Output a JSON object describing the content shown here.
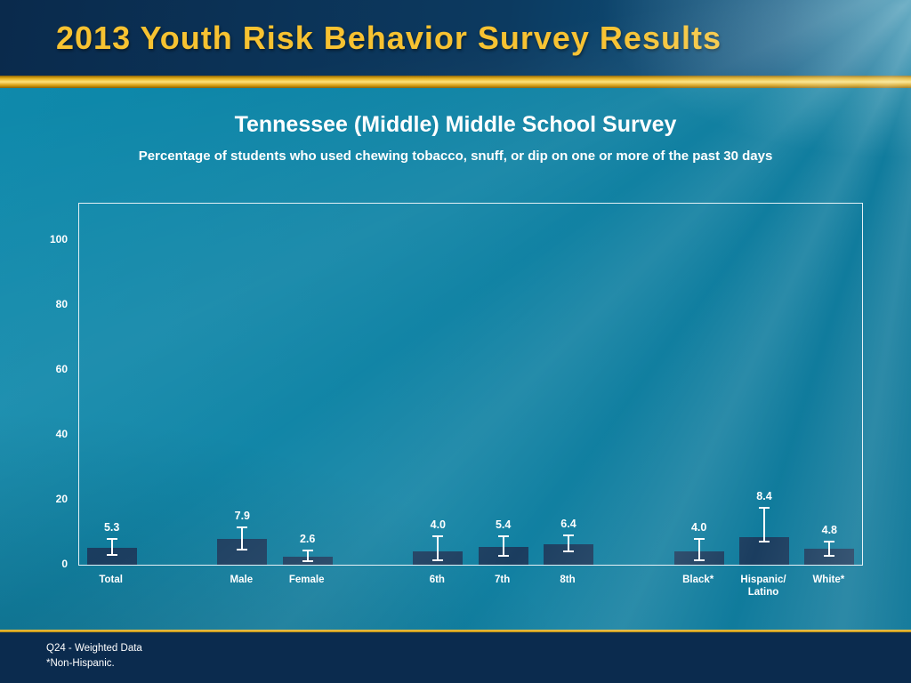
{
  "header": {
    "title": "2013 Youth Risk Behavior Survey Results"
  },
  "colors": {
    "header_bg": "#0b2f55",
    "accent_gold": "#f7c231",
    "background_teal": "#0d82a4",
    "bar": "#16395c",
    "error_bar": "#ffffff",
    "text": "#ffffff",
    "footer_bg": "#0b2b4e"
  },
  "chart_data": {
    "type": "bar",
    "title": "Tennessee (Middle) Middle School Survey",
    "subtitle": "Percentage of students who used chewing tobacco, snuff, or dip on one or more of the past 30 days",
    "xlabel": "",
    "ylabel": "",
    "ylim": [
      0,
      100
    ],
    "yticks": [
      0,
      20,
      40,
      60,
      80,
      100
    ],
    "grid": false,
    "legend": false,
    "bar_color": "#16395c",
    "error_color": "#ffffff",
    "groups": [
      [
        {
          "label": "Total",
          "value": 5.3,
          "err_up": 3.0,
          "err_down": 2.5
        }
      ],
      [
        {
          "label": "Male",
          "value": 7.9,
          "err_up": 4.0,
          "err_down": 3.5
        },
        {
          "label": "Female",
          "value": 2.6,
          "err_up": 2.0,
          "err_down": 1.7
        }
      ],
      [
        {
          "label": "6th",
          "value": 4.0,
          "err_up": 5.0,
          "err_down": 2.8
        },
        {
          "label": "7th",
          "value": 5.4,
          "err_up": 3.6,
          "err_down": 3.0
        },
        {
          "label": "8th",
          "value": 6.4,
          "err_up": 3.0,
          "err_down": 2.7
        }
      ],
      [
        {
          "label": "Black*",
          "value": 4.0,
          "err_up": 4.2,
          "err_down": 2.8
        },
        {
          "label": "Hispanic/\nLatino",
          "value": 8.4,
          "err_up": 9.5,
          "err_down": 1.5
        },
        {
          "label": "White*",
          "value": 4.8,
          "err_up": 2.6,
          "err_down": 2.2
        }
      ]
    ]
  },
  "footer": {
    "line1": "Q24 - Weighted Data",
    "line2": "*Non-Hispanic."
  }
}
